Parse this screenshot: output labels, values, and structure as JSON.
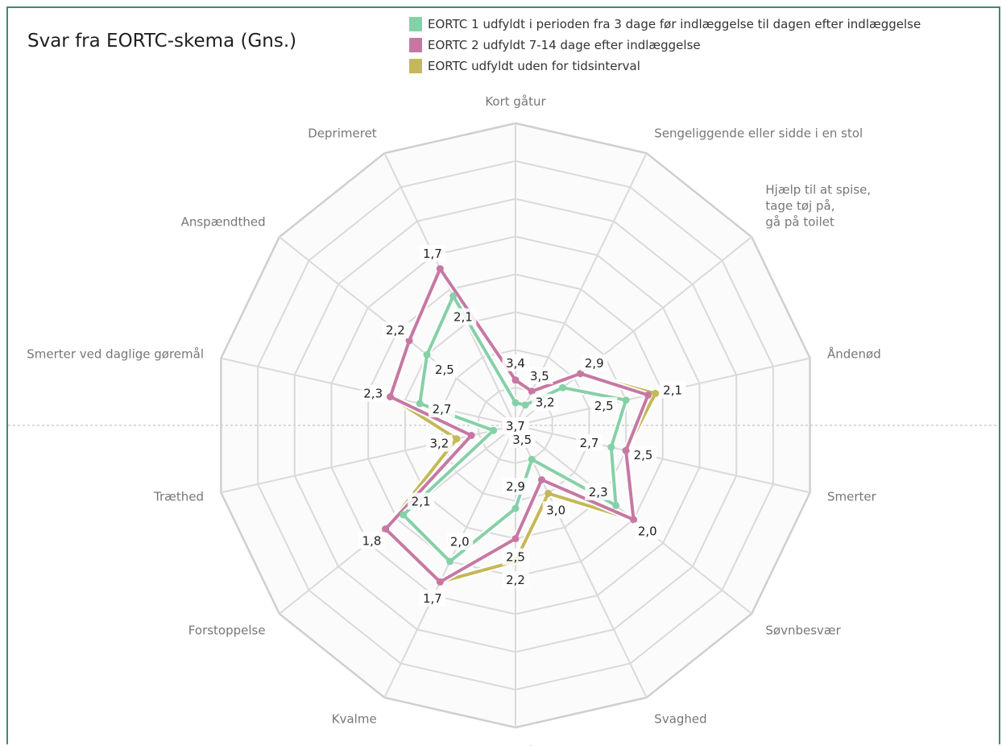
{
  "frame_color": "#3f8a73",
  "chart_data": {
    "type": "radar",
    "title": "Svar fra EORTC-skema (Gns.)",
    "legend_position": "top-right",
    "grid": true,
    "value_range": [
      0,
      4
    ],
    "axes": [
      [
        "Kort gåtur"
      ],
      [
        "Sengeliggende eller sidde i en stol"
      ],
      [
        "Hjælp til at spise,",
        "tage tøj på,",
        "gå på toilet"
      ],
      [
        "Åndenød"
      ],
      [
        "Smerter"
      ],
      [
        "Søvnbesvær"
      ],
      [
        "Svaghed"
      ],
      [
        "Appetit"
      ],
      [
        "Kvalme"
      ],
      [
        "Forstoppelse"
      ],
      [
        "Træthed"
      ],
      [
        "Smerter ved daglige gøremål"
      ],
      [
        "Anspændthed"
      ],
      [
        "Deprimeret"
      ]
    ],
    "series": [
      {
        "name": "EORTC 1 udfyldt i perioden fra 3 dage før indlæggelse til dagen efter indlæggelse",
        "color": "#86d0a8",
        "values": [
          3.7,
          3.7,
          3.2,
          2.5,
          2.7,
          2.3,
          3.5,
          2.9,
          2.0,
          2.1,
          3.7,
          2.7,
          2.5,
          2.1
        ],
        "labels": [
          "3,7",
          "3,7",
          "3,2",
          "2,5",
          "2,7",
          "2,3",
          "3,5",
          "2,9",
          "2,0",
          "2,1",
          "3,7",
          "2,7",
          "2,5",
          "2,1"
        ]
      },
      {
        "name": "EORTC 2 udfyldt 7-14 dage efter indlæggelse",
        "color": "#c678a3",
        "values": [
          3.4,
          3.5,
          2.9,
          2.2,
          2.5,
          2.0,
          3.2,
          2.5,
          1.7,
          1.8,
          3.4,
          2.3,
          2.2,
          1.7
        ],
        "labels": [
          "3,4",
          "3,5",
          "2,9",
          "",
          "",
          "2,0",
          "",
          "2,5",
          "",
          "",
          "",
          "",
          "",
          ""
        ]
      },
      {
        "name": "EORTC udfyldt uden for tidsinterval",
        "color": "#c4b858",
        "values": [
          3.4,
          3.5,
          2.9,
          2.1,
          2.5,
          2.0,
          3.0,
          2.2,
          1.7,
          1.8,
          3.2,
          2.3,
          2.2,
          1.7
        ],
        "labels": [
          "",
          "",
          "",
          "2,1",
          "2,5",
          "2,0",
          "3,0",
          "2,2",
          "1,7",
          "1,8",
          "3,2",
          "2,3",
          "2,2",
          "1,7"
        ]
      }
    ]
  }
}
